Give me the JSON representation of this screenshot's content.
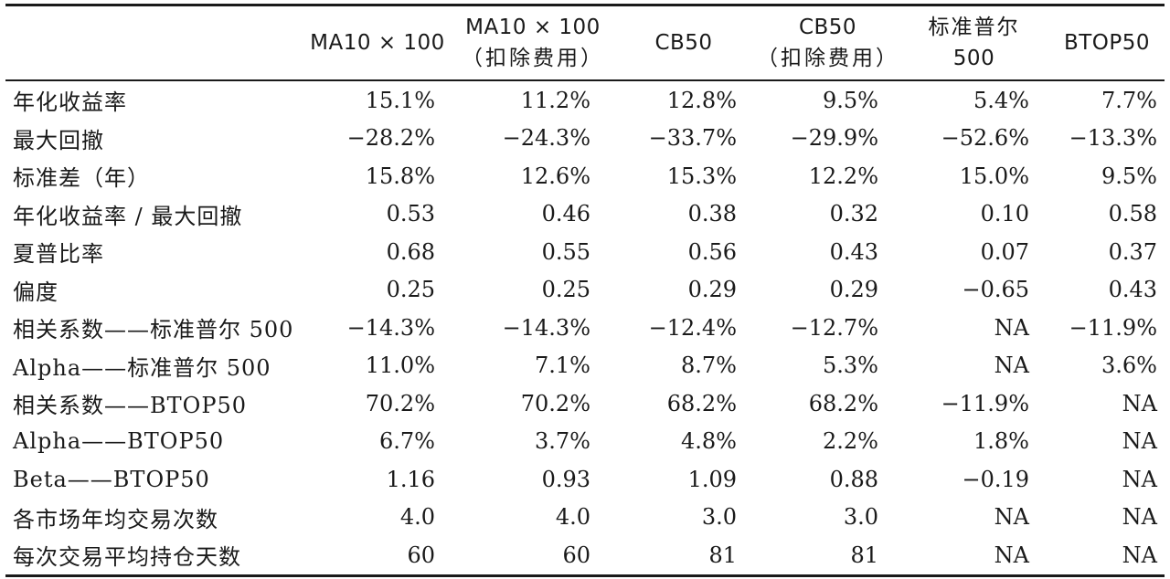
{
  "headers": [
    {
      "line1": "",
      "line2": ""
    },
    {
      "line1": "MA10 × 100",
      "line2": ""
    },
    {
      "line1": "MA10 × 100",
      "line2": "（扣除费用）"
    },
    {
      "line1": "CB50",
      "line2": ""
    },
    {
      "line1": "CB50",
      "line2": "（扣除费用）"
    },
    {
      "line1": "标准普尔",
      "line2": "500"
    },
    {
      "line1": "BTOP50",
      "line2": ""
    }
  ],
  "rows": [
    {
      "label": "年化收益率",
      "values": [
        "15.1%",
        "11.2%",
        "12.8%",
        "9.5%",
        "5.4%",
        "7.7%"
      ]
    },
    {
      "label": "最大回撤",
      "values": [
        "−28.2%",
        "−24.3%",
        "−33.7%",
        "−29.9%",
        "−52.6%",
        "−13.3%"
      ]
    },
    {
      "label": "标准差（年）",
      "values": [
        "15.8%",
        "12.6%",
        "15.3%",
        "12.2%",
        "15.0%",
        "9.5%"
      ]
    },
    {
      "label": "年化收益率 / 最大回撤",
      "values": [
        "0.53",
        "0.46",
        "0.38",
        "0.32",
        "0.10",
        "0.58"
      ]
    },
    {
      "label": "夏普比率",
      "values": [
        "0.68",
        "0.55",
        "0.56",
        "0.43",
        "0.07",
        "0.37"
      ]
    },
    {
      "label": "偏度",
      "values": [
        "0.25",
        "0.25",
        "0.29",
        "0.29",
        "−0.65",
        "0.43"
      ]
    },
    {
      "label": "相关系数——标准普尔 500",
      "values": [
        "−14.3%",
        "−14.3%",
        "−12.4%",
        "−12.7%",
        "NA",
        "−11.9%"
      ]
    },
    {
      "label": "Alpha——标准普尔 500",
      "values": [
        "11.0%",
        "7.1%",
        "8.7%",
        "5.3%",
        "NA",
        "3.6%"
      ]
    },
    {
      "label": "相关系数——BTOP50",
      "values": [
        "70.2%",
        "70.2%",
        "68.2%",
        "68.2%",
        "−11.9%",
        "NA"
      ]
    },
    {
      "label": "Alpha——BTOP50",
      "values": [
        "6.7%",
        "3.7%",
        "4.8%",
        "2.2%",
        "1.8%",
        "NA"
      ]
    },
    {
      "label": "Beta——BTOP50",
      "values": [
        "1.16",
        "0.93",
        "1.09",
        "0.88",
        "−0.19",
        "NA"
      ]
    },
    {
      "label": "各市场年均交易次数",
      "values": [
        "4.0",
        "4.0",
        "3.0",
        "3.0",
        "NA",
        "NA"
      ]
    },
    {
      "label": "每次交易平均持仓天数",
      "values": [
        "60",
        "60",
        "81",
        "81",
        "NA",
        "NA"
      ]
    }
  ]
}
